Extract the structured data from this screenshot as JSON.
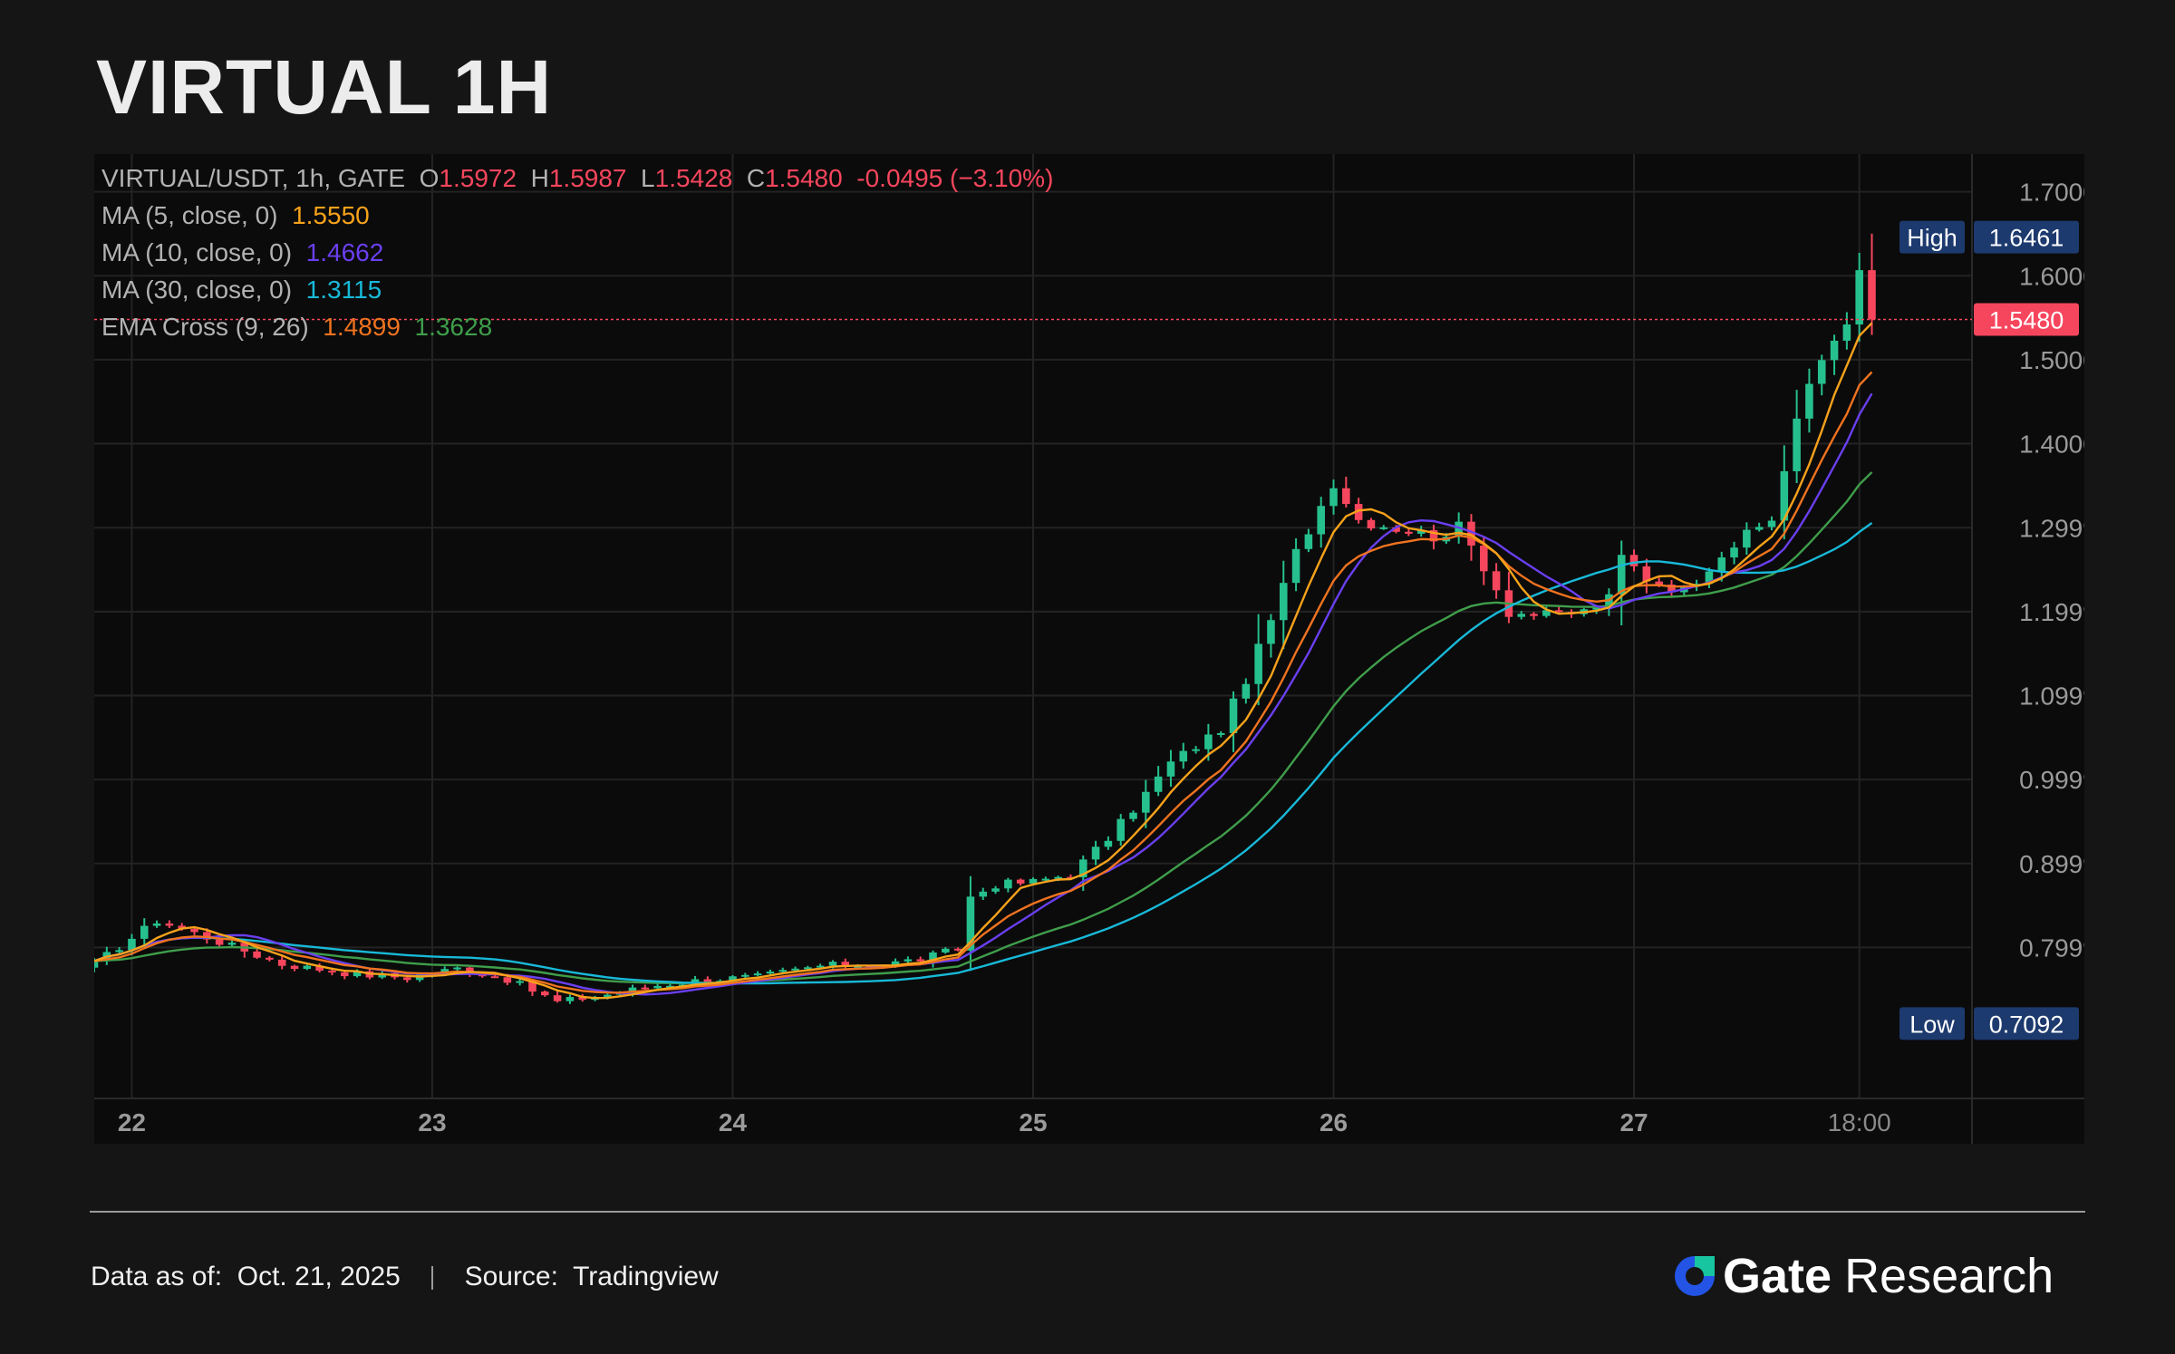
{
  "title": "VIRTUAL 1H",
  "legend": {
    "symbol": "VIRTUAL/USDT, 1h, GATE",
    "o_label": "O",
    "o_value": "1.5972",
    "h_label": "H",
    "h_value": "1.5987",
    "l_label": "L",
    "l_value": "1.5428",
    "c_label": "C",
    "c_value": "1.5480",
    "change": "-0.0495 (−3.10%)",
    "ma5_label": "MA (5, close, 0)",
    "ma5_value": "1.5550",
    "ma10_label": "MA (10, close, 0)",
    "ma10_value": "1.4662",
    "ma30_label": "MA (30, close, 0)",
    "ma30_value": "1.3115",
    "ema_label": "EMA Cross (9, 26)",
    "ema9_value": "1.4899",
    "ema26_value": "1.3628"
  },
  "colors": {
    "up": "#26c08e",
    "down": "#f6465d",
    "ma5": "#f7a21b",
    "ma10": "#6a3ff0",
    "ma30": "#18b9d8",
    "ema9": "#f0731f",
    "ema26": "#3f9e4b",
    "grid": "#232323",
    "axis_text": "#9a9a9a",
    "badge_bg": "#1d3a6e"
  },
  "chart_data": {
    "type": "line",
    "chart_kind": "candlestick",
    "pair": "VIRTUAL/USDT",
    "interval": "1h",
    "exchange": "GATE",
    "x_tick_labels": [
      "22",
      "23",
      "24",
      "25",
      "26",
      "27",
      "18:00"
    ],
    "x_tick_hours": [
      0,
      24,
      48,
      72,
      96,
      120,
      138
    ],
    "y_tick_labels": [
      "1.7000",
      "1.6000",
      "1.5000",
      "1.4000",
      "1.2999",
      "1.1999",
      "1.0999",
      "0.9999",
      "0.8999",
      "0.7999"
    ],
    "y_tick_values": [
      1.7,
      1.6,
      1.5,
      1.4,
      1.2999,
      1.1999,
      1.0999,
      0.9999,
      0.8999,
      0.7999
    ],
    "ylim": [
      0.62,
      1.745
    ],
    "x_range_hours": [
      -3,
      147
    ],
    "grid": true,
    "last_price_label": "1.5480",
    "last_price": 1.548,
    "high_label": "High",
    "high_value": "1.6461",
    "high": 1.6461,
    "low_label": "Low",
    "low_value": "0.7092",
    "low": 0.7092,
    "anchors": [
      [
        -3,
        0.78
      ],
      [
        2,
        0.832
      ],
      [
        6,
        0.812
      ],
      [
        12,
        0.78
      ],
      [
        18,
        0.768
      ],
      [
        22,
        0.764
      ],
      [
        26,
        0.775
      ],
      [
        30,
        0.762
      ],
      [
        34,
        0.735
      ],
      [
        38,
        0.744
      ],
      [
        42,
        0.755
      ],
      [
        46,
        0.762
      ],
      [
        50,
        0.765
      ],
      [
        55,
        0.778
      ],
      [
        60,
        0.78
      ],
      [
        63,
        0.786
      ],
      [
        66,
        0.798
      ],
      [
        67,
        0.86
      ],
      [
        69,
        0.875
      ],
      [
        72,
        0.878
      ],
      [
        75,
        0.888
      ],
      [
        78,
        0.93
      ],
      [
        80,
        0.965
      ],
      [
        83,
        1.02
      ],
      [
        85,
        1.04
      ],
      [
        87,
        1.06
      ],
      [
        89,
        1.12
      ],
      [
        91,
        1.19
      ],
      [
        93,
        1.27
      ],
      [
        96,
        1.355
      ],
      [
        98,
        1.31
      ],
      [
        101,
        1.3
      ],
      [
        104,
        1.29
      ],
      [
        106,
        1.3
      ],
      [
        108,
        1.255
      ],
      [
        110,
        1.2
      ],
      [
        113,
        1.195
      ],
      [
        116,
        1.2
      ],
      [
        118,
        1.215
      ],
      [
        119,
        1.265
      ],
      [
        121,
        1.24
      ],
      [
        124,
        1.225
      ],
      [
        127,
        1.27
      ],
      [
        129,
        1.29
      ],
      [
        131,
        1.31
      ],
      [
        133,
        1.43
      ],
      [
        135,
        1.5
      ],
      [
        137,
        1.55
      ],
      [
        138,
        1.6
      ],
      [
        139,
        1.548
      ]
    ],
    "indicator_last": {
      "ma5": 1.555,
      "ma10": 1.4662,
      "ma30": 1.3115,
      "ema9": 1.4899,
      "ema26": 1.3628
    }
  },
  "footer": {
    "data_label": "Data as of:",
    "data_date": "Oct. 21, 2025",
    "source_label": "Source:",
    "source_value": "Tradingview",
    "brand_name": "Gate",
    "brand_suffix": "Research"
  }
}
